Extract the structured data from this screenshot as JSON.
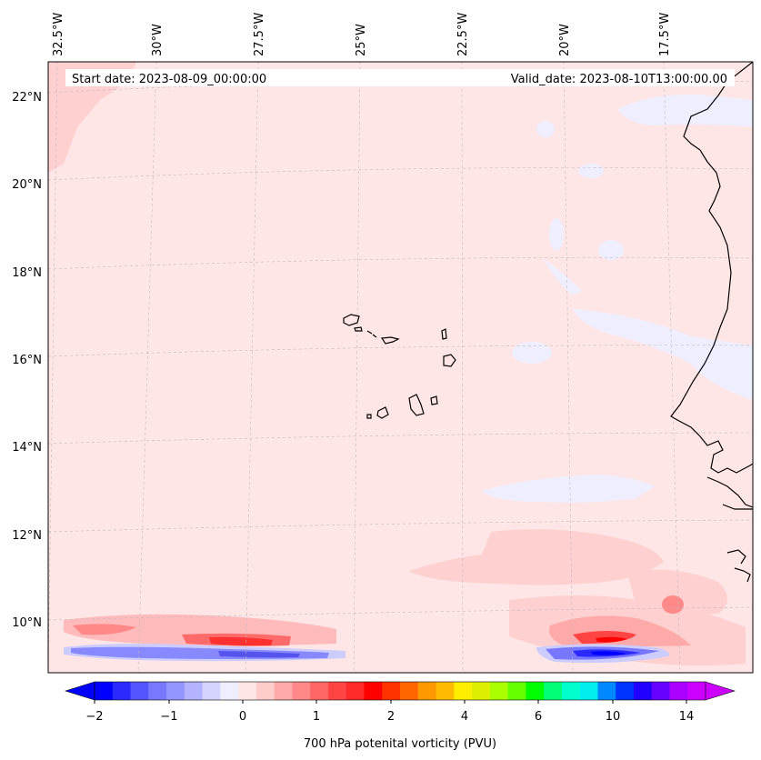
{
  "map": {
    "start_label": "Start date: 2023-08-09_00:00:00",
    "valid_label": "Valid_date: 2023-08-10T13:00:00.00",
    "lon_labels": [
      "32.5°W",
      "30°W",
      "27.5°W",
      "25°W",
      "22.5°W",
      "20°W",
      "17.5°W"
    ],
    "lat_labels": [
      "22°N",
      "20°N",
      "18°N",
      "16°N",
      "14°N",
      "12°N",
      "10°N"
    ],
    "background_color": "#ffe6e6"
  },
  "colorbar": {
    "label": "700 hPa potenital vorticity (PVU)",
    "tick_labels": [
      "−2",
      "−1",
      "0",
      "1",
      "2",
      "4",
      "6",
      "10",
      "14"
    ],
    "colors": [
      "#0000ff",
      "#2a2aff",
      "#5555ff",
      "#7777ff",
      "#9595ff",
      "#b3b3ff",
      "#d4d4ff",
      "#eeeeff",
      "#ffe6e6",
      "#ffcccc",
      "#ffaaaa",
      "#ff8888",
      "#ff6666",
      "#ff4444",
      "#ff2a2a",
      "#ff0000",
      "#ff3300",
      "#ff6600",
      "#ff9900",
      "#ffbb00",
      "#ffee00",
      "#ddee00",
      "#aaff00",
      "#66ff00",
      "#00ff00",
      "#00ff77",
      "#00ffcc",
      "#00eeee",
      "#0088ff",
      "#0033ff",
      "#2200ff",
      "#6600ff",
      "#aa00ff",
      "#cc00ff"
    ]
  }
}
